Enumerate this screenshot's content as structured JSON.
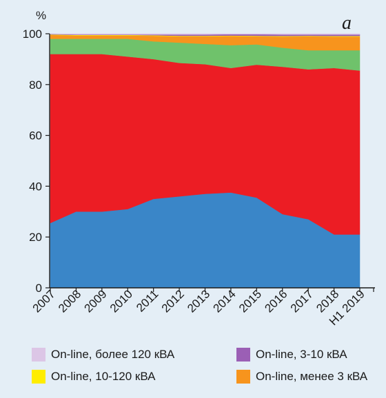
{
  "chart_data": {
    "type": "area",
    "stacked": true,
    "panel_label": "а",
    "ylabel": "%",
    "ylim": [
      0,
      100
    ],
    "yticks": [
      0,
      20,
      40,
      60,
      80,
      100
    ],
    "categories": [
      "2007",
      "2008",
      "2009",
      "2010",
      "2011",
      "2012",
      "2013",
      "2014",
      "2015",
      "2016",
      "2017",
      "2018",
      "H1 2019"
    ],
    "series": [
      {
        "color": "#3a86c8",
        "values": [
          25.5,
          30,
          30,
          31,
          35,
          36,
          37,
          37.5,
          35.5,
          29,
          27,
          21,
          21
        ]
      },
      {
        "color": "#ec1d24",
        "values": [
          66.5,
          62,
          62,
          60,
          55,
          52.5,
          51,
          49,
          52.3,
          58,
          59,
          65.5,
          64.5
        ]
      },
      {
        "color": "#6fc26b",
        "values": [
          6,
          6,
          6,
          7,
          7,
          8,
          8,
          9,
          8,
          7.5,
          7.5,
          7,
          8
        ]
      },
      {
        "color": "#f7941d",
        "values": [
          1.5,
          1.3,
          1.3,
          1.3,
          2.2,
          2.5,
          3,
          3.6,
          3.2,
          4.4,
          5.5,
          5.4,
          5.4
        ]
      },
      {
        "color": "#ffed00",
        "values": [
          0.2,
          0.2,
          0.2,
          0.2,
          0.2,
          0.2,
          0.2,
          0.2,
          0.2,
          0.2,
          0.2,
          0.2,
          0.2
        ]
      },
      {
        "color": "#9b5fb5",
        "values": [
          0.2,
          0.2,
          0.2,
          0.2,
          0.3,
          0.5,
          0.5,
          0.5,
          0.6,
          0.6,
          0.5,
          0.6,
          0.6
        ]
      },
      {
        "color": "#dcc6e6",
        "values": [
          0.1,
          0.3,
          0.3,
          0.3,
          0.3,
          0.3,
          0.3,
          0.2,
          0.2,
          0.3,
          0.3,
          0.3,
          0.3
        ]
      }
    ]
  },
  "legend": [
    {
      "label": "On-line, более 120 кВА",
      "color": "#dcc6e6"
    },
    {
      "label": "On-line, 3-10 кВА",
      "color": "#9b5fb5"
    },
    {
      "label": "On-line, 10-120 кВА",
      "color": "#ffed00"
    },
    {
      "label": "On-line, менее 3 кВА",
      "color": "#f7941d"
    }
  ]
}
